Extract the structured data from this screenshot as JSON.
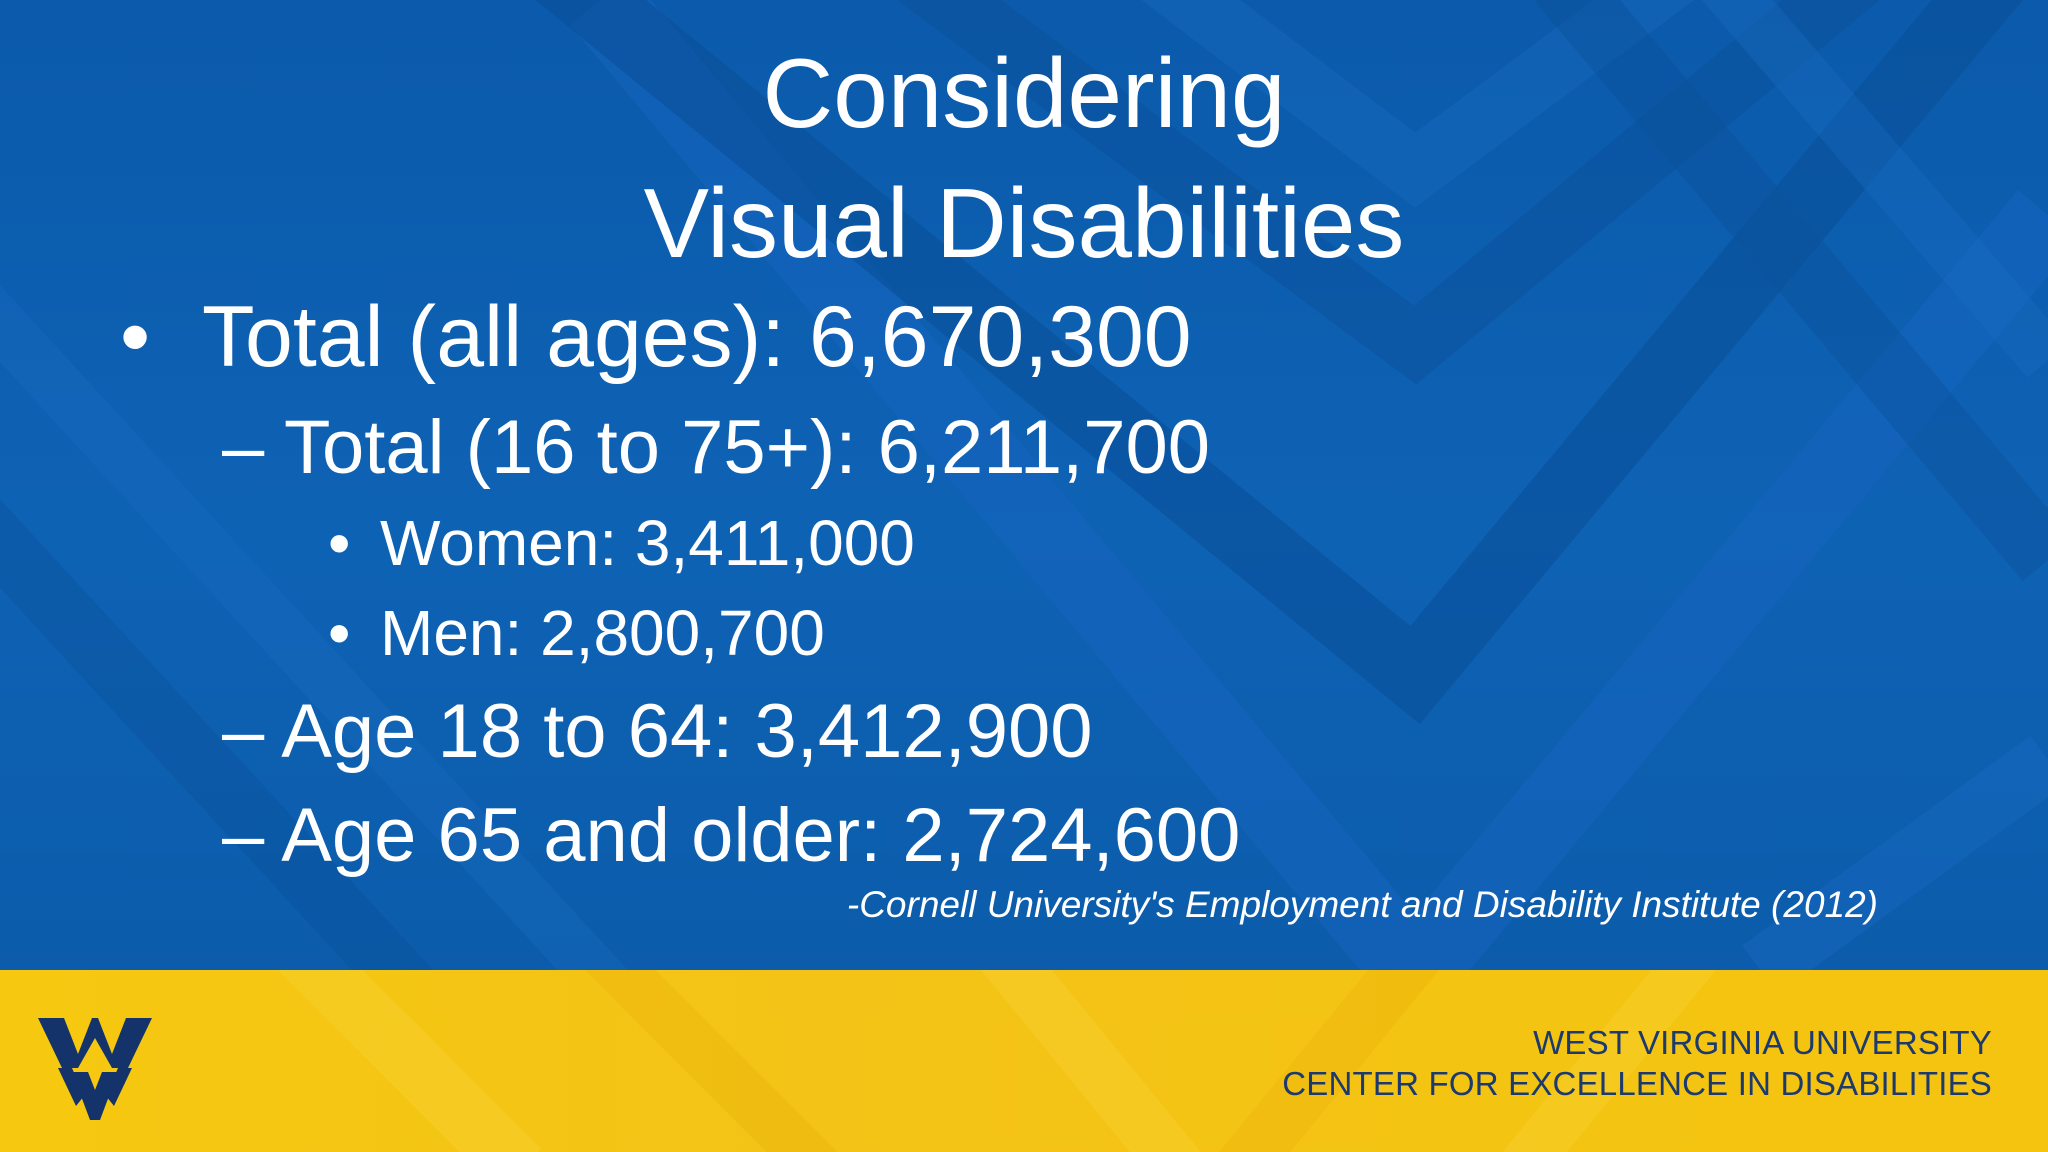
{
  "slide": {
    "title_line1": "Considering",
    "title_line2": "Visual Disabilities",
    "bullets": [
      {
        "level": 1,
        "marker": "•",
        "text": "Total (all ages): 6,670,300"
      },
      {
        "level": 2,
        "marker": "–",
        "text": "Total (16 to 75+): 6,211,700"
      },
      {
        "level": 3,
        "marker": "•",
        "text": "Women: 3,411,000"
      },
      {
        "level": 3,
        "marker": "•",
        "text": "Men: 2,800,700"
      },
      {
        "level": 2,
        "marker": "–",
        "text": "Age 18 to 64: 3,412,900"
      },
      {
        "level": 2,
        "marker": "–",
        "text": "Age 65 and older: 2,724,600"
      }
    ],
    "citation": "-Cornell University's Employment and Disability Institute (2012)"
  },
  "footer": {
    "line1": "WEST VIRGINIA UNIVERSITY",
    "line2": "CENTER FOR EXCELLENCE IN DISABILITIES",
    "logo_icon": "wv-logo-icon"
  },
  "colors": {
    "background_blue": "#0b5aab",
    "footer_yellow": "#f5c40f",
    "footer_text": "#1c3a6e",
    "text": "#ffffff"
  }
}
